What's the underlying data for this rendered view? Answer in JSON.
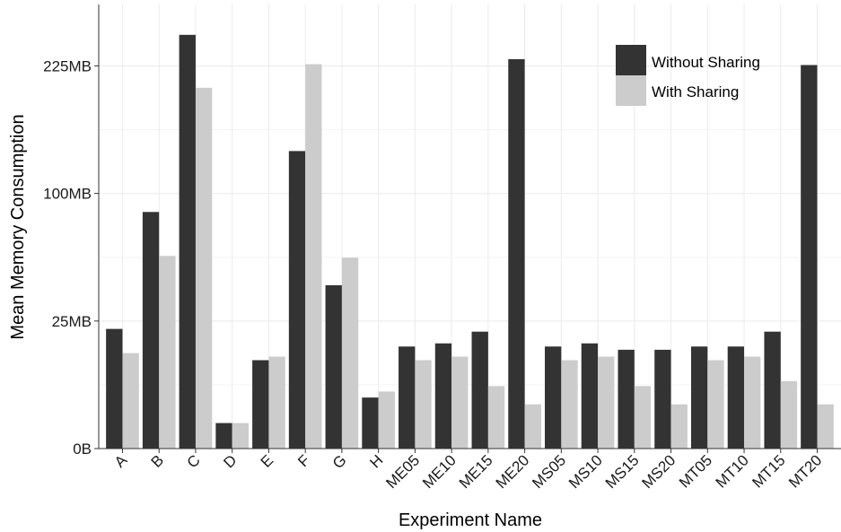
{
  "colors": {
    "without_sharing": "#333333",
    "with_sharing": "#cccccc",
    "grid_major": "#ebebeb",
    "grid_minor": "#f5f5f5",
    "axis": "#333333"
  },
  "chart_data": {
    "type": "bar",
    "title": "",
    "xlabel": "Experiment Name",
    "ylabel": "Mean Memory Consumption",
    "y_scale": "log",
    "grid": true,
    "legend_position": "top-right",
    "y_ticks": [
      {
        "label": "0B",
        "value": 0
      },
      {
        "label": "25MB",
        "value": 25
      },
      {
        "label": "100MB",
        "value": 100
      },
      {
        "label": "225MB",
        "value": 225
      }
    ],
    "categories": [
      "A",
      "B",
      "C",
      "D",
      "E",
      "F",
      "G",
      "H",
      "ME05",
      "ME10",
      "ME15",
      "ME20",
      "MS05",
      "MS10",
      "MS15",
      "MS20",
      "MT05",
      "MT10",
      "MT15",
      "MT20"
    ],
    "series": [
      {
        "name": "Without Sharing",
        "values": [
          22,
          86,
          263,
          1,
          12,
          136,
          41,
          4,
          16,
          17,
          21,
          233,
          16,
          17,
          15,
          15,
          16,
          16,
          21,
          226
        ]
      },
      {
        "name": "With Sharing",
        "values": [
          14,
          57,
          200,
          1,
          13,
          227,
          56,
          5,
          12,
          13,
          6,
          3,
          12,
          13,
          6,
          3,
          12,
          13,
          7,
          3
        ]
      }
    ]
  }
}
